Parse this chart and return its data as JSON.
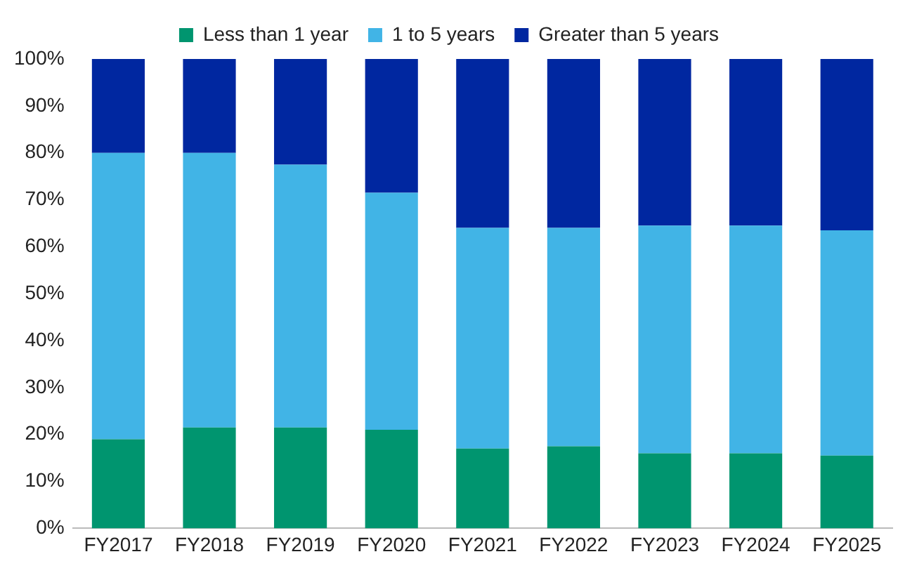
{
  "chart_data": {
    "type": "bar",
    "stacked": true,
    "categories": [
      "FY2017",
      "FY2018",
      "FY2019",
      "FY2020",
      "FY2021",
      "FY2022",
      "FY2023",
      "FY2024",
      "FY2025"
    ],
    "series": [
      {
        "name": "Less than 1 year",
        "color": "#00956f",
        "values": [
          19,
          21.5,
          21.5,
          21,
          17,
          17.5,
          16,
          16,
          15.5
        ]
      },
      {
        "name": "1 to 5 years",
        "color": "#41b4e6",
        "values": [
          61,
          58.5,
          56,
          50.5,
          47,
          46.5,
          48.5,
          48.5,
          48
        ]
      },
      {
        "name": "Greater than 5 years",
        "color": "#0027a0",
        "values": [
          20,
          20,
          22.5,
          28.5,
          36,
          36,
          35.5,
          35.5,
          36.5
        ]
      }
    ],
    "ylim": [
      0,
      100
    ],
    "yticks": [
      {
        "value": 0,
        "label": "0%"
      },
      {
        "value": 10,
        "label": "10%"
      },
      {
        "value": 20,
        "label": "20%"
      },
      {
        "value": 30,
        "label": "30%"
      },
      {
        "value": 40,
        "label": "40%"
      },
      {
        "value": 50,
        "label": "50%"
      },
      {
        "value": 60,
        "label": "60%"
      },
      {
        "value": 70,
        "label": "70%"
      },
      {
        "value": 80,
        "label": "80%"
      },
      {
        "value": 90,
        "label": "90%"
      },
      {
        "value": 100,
        "label": "100%"
      }
    ],
    "grid": false,
    "legend": "top"
  }
}
